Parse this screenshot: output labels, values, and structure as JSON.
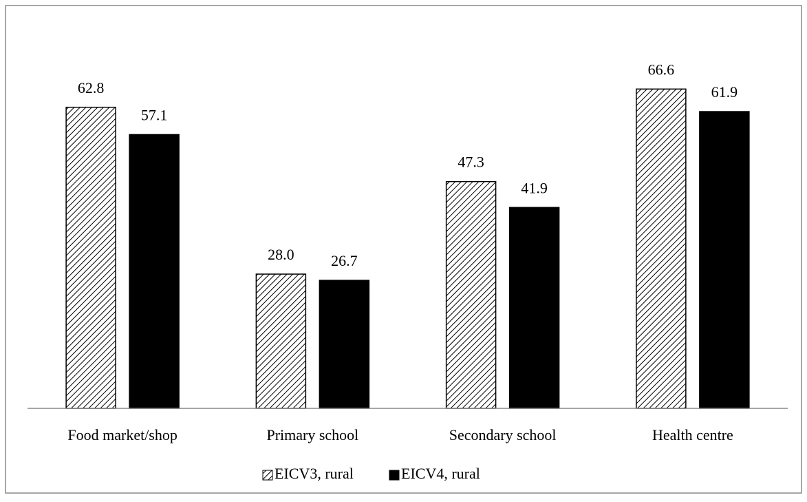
{
  "chart_data": {
    "type": "bar",
    "categories": [
      "Food market/shop",
      "Primary school",
      "Secondary school",
      "Health centre"
    ],
    "series": [
      {
        "name": "EICV3, rural",
        "color": "#000000",
        "hatch": true,
        "values": [
          62.8,
          28.0,
          47.3,
          66.6
        ],
        "value_labels": [
          "62.8",
          "28.0",
          "47.3",
          "66.6"
        ]
      },
      {
        "name": "EICV4, rural",
        "color": "#000000",
        "hatch": false,
        "values": [
          57.1,
          26.7,
          41.9,
          61.9
        ],
        "value_labels": [
          "57.1",
          "26.7",
          "41.9",
          "61.9"
        ]
      }
    ],
    "ylim": [
      0,
      80
    ],
    "legend": "bottom"
  }
}
